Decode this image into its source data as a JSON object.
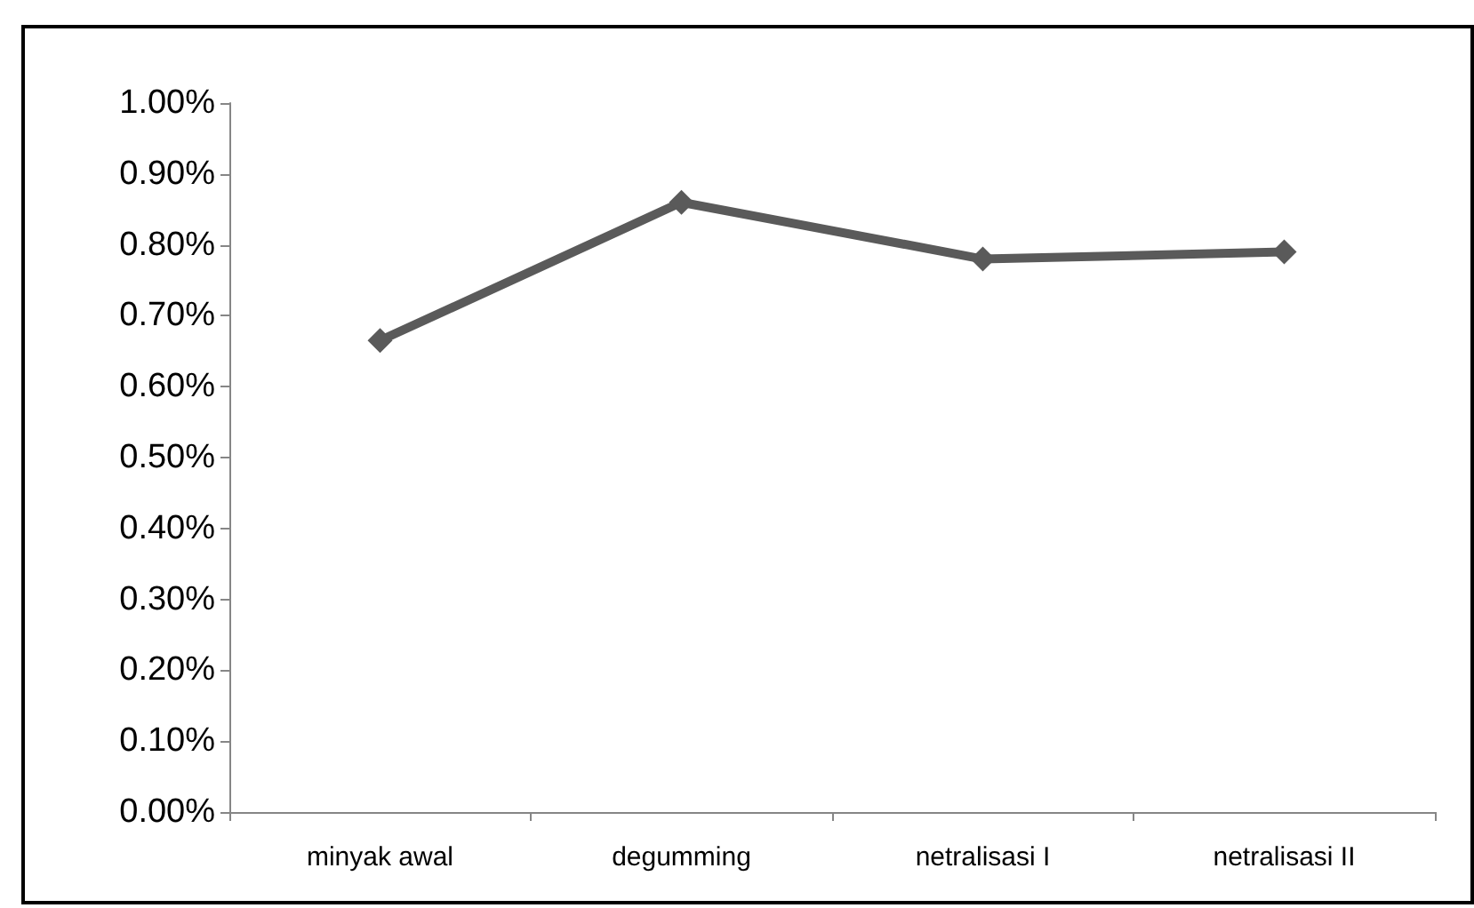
{
  "chart_data": {
    "type": "line",
    "categories": [
      "minyak awal",
      "degumming",
      "netralisasi I",
      "netralisasi II"
    ],
    "series": [
      {
        "color": "#5a5a5a",
        "values": [
          0.665,
          0.86,
          0.78,
          0.79
        ]
      }
    ],
    "ylim": [
      0,
      1
    ],
    "yticks": [
      {
        "value": 0,
        "label": "0.00%"
      },
      {
        "value": 0.1,
        "label": "0.10%"
      },
      {
        "value": 0.2,
        "label": "0.20%"
      },
      {
        "value": 0.3,
        "label": "0.30%"
      },
      {
        "value": 0.4,
        "label": "0.40%"
      },
      {
        "value": 0.5,
        "label": "0.50%"
      },
      {
        "value": 0.6,
        "label": "0.60%"
      },
      {
        "value": 0.7,
        "label": "0.70%"
      },
      {
        "value": 0.8,
        "label": "0.80%"
      },
      {
        "value": 0.9,
        "label": "0.90%"
      },
      {
        "value": 1,
        "label": "1.00%"
      }
    ],
    "grid": false,
    "marker": "diamond",
    "line_style": "solid"
  }
}
